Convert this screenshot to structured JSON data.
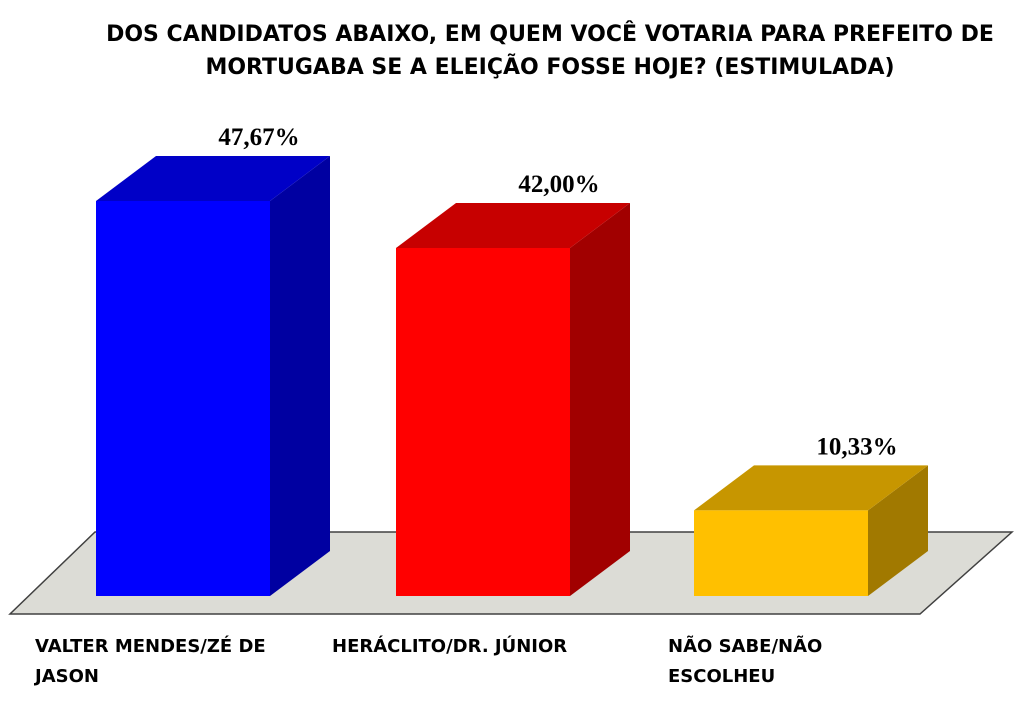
{
  "chart_data": {
    "type": "bar3d",
    "title": "DOS CANDIDATOS ABAIXO, EM QUEM VOCÊ VOTARIA PARA PREFEITO DE MORTUGABA SE A ELEIÇÃO FOSSE HOJE? (ESTIMULADA)",
    "categories": [
      "VALTER MENDES/ZÉ DE JASON",
      "HERÁCLITO/DR. JÚNIOR",
      "NÃO SABE/NÃO ESCOLHEU"
    ],
    "values": [
      47.67,
      42.0,
      10.33
    ],
    "value_labels": [
      "47,67%",
      "42,00%",
      "10,33%"
    ],
    "colors": [
      "#0000ff",
      "#ff0000",
      "#ffc000"
    ]
  }
}
